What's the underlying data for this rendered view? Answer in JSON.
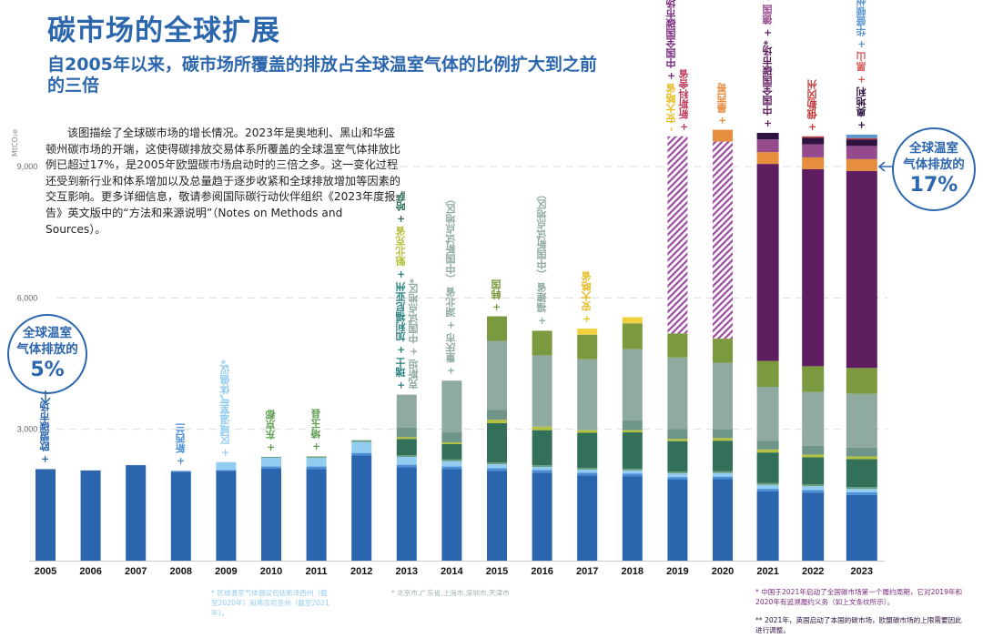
{
  "header": {
    "title": "碳市场的全球扩展",
    "subtitle": "自2005年以来，碳市场所覆盖的排放占全球温室气体的比例扩大到之前的三倍"
  },
  "description": "该图描绘了全球碳市场的增长情况。2023年是奥地利、黑山和华盛顿州碳市场的开端，这使得碳排放交易体系所覆盖的全球温室气体排放比例已超过17%，是2005年欧盟碳市场启动时的三倍之多。这一变化过程还受到新行业和体系增加以及总量趋于逐步收紧和全球排放增加等因素的交互影响。更多详细信息，敬请参阅国际碳行动伙伴组织《2023年度报告》英文版中的“方法和来源说明”（Notes on Methods and Sources）。",
  "badges": {
    "left": {
      "line1": "全球温室",
      "line2": "气体排放的",
      "pct": "5%"
    },
    "right": {
      "line1": "全球温室",
      "line2": "气体排放的",
      "pct": "17%"
    }
  },
  "notes": {
    "rggi": "* 区域温室气体倡议包括新泽西州（截至2020年）和弗吉尼亚州（截至2021年）。",
    "china_pilots": "* 北京市,广东省,上海市,深圳市,天津市",
    "china_national": "* 中国于2021年启动了全国碳市场第一个履约周期，它对2019年和2020年有追溯履约义务（如上文条纹所示）。",
    "uk": "** 2021年，英国启动了本国的碳市场，欧盟碳市场的上限需要因此进行调整。"
  },
  "chart_data": {
    "type": "bar",
    "stacked": true,
    "title": "碳市场的全球扩展",
    "ylabel": "MtCO₂e",
    "xlabel": "",
    "ylim": [
      0,
      9000
    ],
    "yticks": [
      3000,
      6000,
      9000
    ],
    "ytick_labels": [
      "3,000",
      "6,000",
      "9,000"
    ],
    "grid": "horizontal dashed",
    "categories": [
      "2005",
      "2006",
      "2007",
      "2008",
      "2009",
      "2010",
      "2011",
      "2012",
      "2013",
      "2014",
      "2015",
      "2016",
      "2017",
      "2018",
      "2019",
      "2020",
      "2021",
      "2022",
      "2023"
    ],
    "series": [
      {
        "name": "欧盟碳市场",
        "color": "#2b65ad",
        "values": [
          2090,
          2060,
          2180,
          2030,
          2050,
          2100,
          2090,
          2400,
          2130,
          2090,
          2050,
          2010,
          1950,
          1930,
          1850,
          1860,
          1580,
          1550,
          1500
        ]
      },
      {
        "name": "新西兰",
        "color": "#4a8fd6",
        "values": [
          0,
          0,
          0,
          20,
          20,
          50,
          60,
          60,
          60,
          60,
          60,
          60,
          60,
          60,
          60,
          60,
          60,
          60,
          60
        ]
      },
      {
        "name": "区域温室气体倡议",
        "color": "#92ccf0",
        "values": [
          0,
          0,
          0,
          0,
          180,
          200,
          200,
          250,
          180,
          120,
          90,
          70,
          70,
          70,
          80,
          80,
          90,
          90,
          80
        ]
      },
      {
        "name": "东京都/埼玉县",
        "color": "#6a9e7f",
        "values": [
          0,
          0,
          0,
          0,
          0,
          20,
          30,
          40,
          40,
          40,
          40,
          40,
          40,
          40,
          40,
          40,
          40,
          40,
          40
        ]
      },
      {
        "name": "瑞士/加利福尼亚州/魁北克省/哈萨克斯坦",
        "color": "#327059",
        "values": [
          0,
          0,
          0,
          0,
          0,
          0,
          0,
          0,
          370,
          350,
          900,
          800,
          800,
          830,
          700,
          700,
          700,
          620,
          640
        ]
      },
      {
        "name": "哈萨克斯坦",
        "color": "#b4c23d",
        "values": [
          0,
          0,
          0,
          0,
          0,
          0,
          0,
          0,
          40,
          40,
          80,
          80,
          60,
          50,
          50,
          60,
          70,
          60,
          60
        ]
      },
      {
        "name": "中国试点地区",
        "color": "#6f958a",
        "values": [
          0,
          0,
          0,
          0,
          0,
          0,
          0,
          0,
          220,
          230,
          220,
          0,
          0,
          220,
          230,
          200,
          200,
          200,
          200
        ]
      },
      {
        "name": "中国新试点地区",
        "color": "#8faa9f",
        "values": [
          0,
          0,
          0,
          0,
          0,
          0,
          0,
          0,
          750,
          1180,
          1580,
          1630,
          1620,
          1630,
          1630,
          1520,
          1230,
          1230,
          1230
        ]
      },
      {
        "name": "韩国",
        "color": "#7b993f",
        "values": [
          0,
          0,
          0,
          0,
          0,
          0,
          0,
          0,
          0,
          0,
          560,
          560,
          560,
          590,
          550,
          550,
          590,
          590,
          590
        ]
      },
      {
        "name": "安大略省",
        "color": "#f2d03d",
        "values": [
          0,
          0,
          0,
          0,
          0,
          0,
          0,
          0,
          0,
          0,
          0,
          0,
          140,
          140,
          0,
          0,
          0,
          0,
          0
        ]
      },
      {
        "name": "中国全国碳市场(追溯)",
        "color": "#9b4a9e",
        "hatched": true,
        "values": [
          0,
          0,
          0,
          0,
          0,
          0,
          0,
          0,
          0,
          0,
          0,
          0,
          0,
          0,
          4500,
          4500,
          0,
          0,
          0
        ]
      },
      {
        "name": "中国全国碳市场",
        "color": "#5e1d5e",
        "values": [
          0,
          0,
          0,
          0,
          0,
          0,
          0,
          0,
          0,
          0,
          0,
          0,
          0,
          0,
          0,
          0,
          4500,
          4500,
          4500
        ]
      },
      {
        "name": "墨西哥",
        "color": "#e68d3e",
        "values": [
          0,
          0,
          0,
          0,
          0,
          0,
          0,
          0,
          0,
          0,
          0,
          0,
          0,
          0,
          0,
          270,
          270,
          270,
          270
        ]
      },
      {
        "name": "德国",
        "color": "#944a8c",
        "values": [
          0,
          0,
          0,
          0,
          0,
          0,
          0,
          0,
          0,
          0,
          0,
          0,
          0,
          0,
          0,
          0,
          290,
          300,
          300
        ]
      },
      {
        "name": "英国",
        "color": "#2e1240",
        "values": [
          0,
          0,
          0,
          0,
          0,
          0,
          0,
          0,
          0,
          0,
          0,
          0,
          0,
          0,
          0,
          0,
          150,
          150,
          150
        ]
      },
      {
        "name": "俄勒冈州",
        "color": "#c23b3b",
        "values": [
          0,
          0,
          0,
          0,
          0,
          0,
          0,
          0,
          0,
          0,
          0,
          0,
          0,
          0,
          0,
          0,
          0,
          30,
          30
        ]
      },
      {
        "name": "奥地利/黑山/华盛顿州",
        "color": "#5b97cf",
        "values": [
          0,
          0,
          0,
          0,
          0,
          0,
          0,
          0,
          0,
          0,
          0,
          0,
          0,
          0,
          0,
          0,
          0,
          0,
          80
        ]
      }
    ],
    "annotations": [
      {
        "year": "2005",
        "parts": [
          {
            "text": "+ 欧盟碳市场",
            "color": "#2b65ad"
          }
        ]
      },
      {
        "year": "2008",
        "parts": [
          {
            "text": "+ 新西兰",
            "color": "#4a8fd6"
          }
        ]
      },
      {
        "year": "2009",
        "parts": [
          {
            "text": "+ 区域温室气体倡议*",
            "color": "#92ccf0"
          }
        ]
      },
      {
        "year": "2010",
        "parts": [
          {
            "text": "+ 东京都",
            "color": "#5e9e50"
          }
        ]
      },
      {
        "year": "2011",
        "parts": [
          {
            "text": "+ 埼玉县",
            "color": "#5e9e50"
          }
        ]
      },
      {
        "year": "2013",
        "parts": [
          {
            "text": "+ 瑞士 + 加利福尼亚州 + ",
            "color": "#2a8080"
          },
          {
            "text": "魁北克省",
            "color": "#b4c23d"
          },
          {
            "text": " + 哈萨",
            "color": "#327059"
          }
        ],
        "line2": {
          "text": "克斯坦 + 中国试点地区*",
          "color": "#8faa9f"
        }
      },
      {
        "year": "2014",
        "parts": [
          {
            "text": "+ 重庆市 + 湖北省 （中国新试点地区）",
            "color": "#8faa9f"
          }
        ]
      },
      {
        "year": "2015",
        "parts": [
          {
            "text": "+ 韩国",
            "color": "#7b993f"
          }
        ]
      },
      {
        "year": "2016",
        "parts": [
          {
            "text": "+ 福建省 （中国新试点地区）",
            "color": "#8faa9f"
          }
        ]
      },
      {
        "year": "2017",
        "parts": [
          {
            "text": "+ 安大略省",
            "color": "#e6be2a"
          }
        ]
      },
      {
        "year": "2019",
        "parts": [
          {
            "text": "- 安大略省",
            "color": "#e6be2a"
          },
          {
            "text": " + 中国全国碳市场",
            "color": "#7a2a7e"
          }
        ],
        "line2": {
          "text": "+ 新斯科舍省",
          "color": "#c23b5a"
        }
      },
      {
        "year": "2020",
        "parts": [
          {
            "text": "+ 墨西哥",
            "color": "#e68d3e"
          }
        ]
      },
      {
        "year": "2021",
        "parts": [
          {
            "text": "+ 中国全国碳市场* + ",
            "color": "#5e1d5e"
          },
          {
            "text": "德国",
            "color": "#944a8c"
          },
          {
            "text": " + 英国**",
            "color": "#2e1240"
          }
        ]
      },
      {
        "year": "2022",
        "parts": [
          {
            "text": "+ 俄勒冈州",
            "color": "#c23b3b"
          }
        ]
      },
      {
        "year": "2023",
        "parts": [
          {
            "text": "+ 奥地利",
            "color": "#2e1240"
          },
          {
            "text": " + 黑山",
            "color": "#d65a5a"
          },
          {
            "text": " + 华盛顿州",
            "color": "#5b97cf"
          }
        ]
      }
    ]
  }
}
